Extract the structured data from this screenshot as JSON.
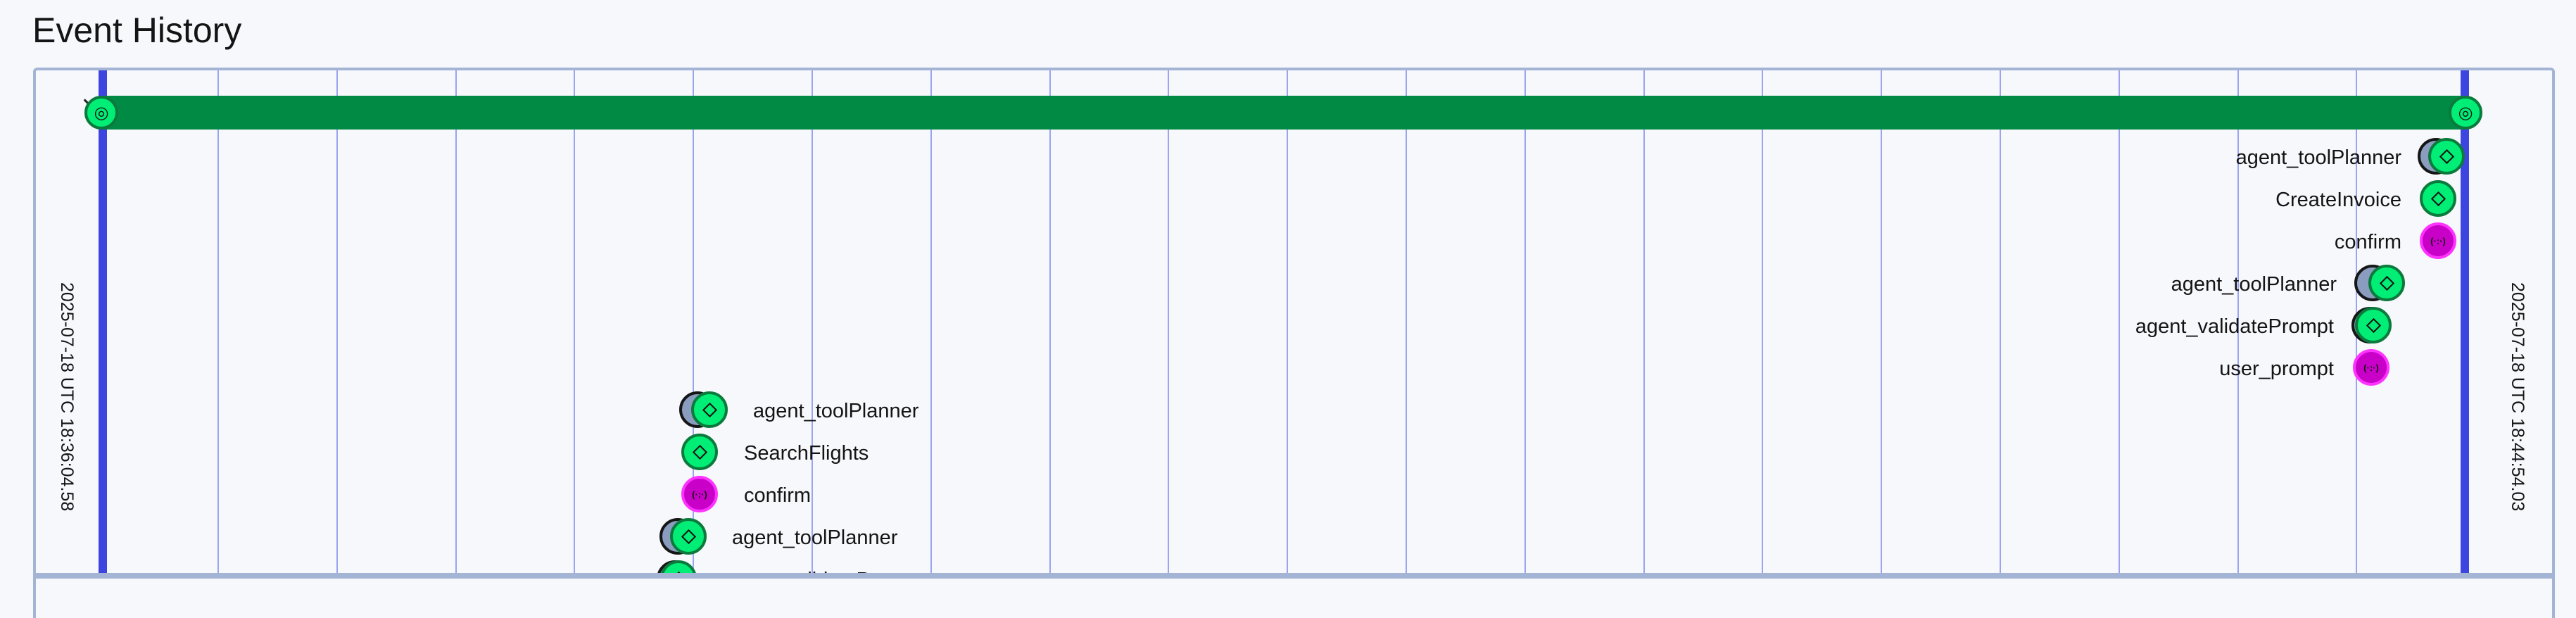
{
  "header": {
    "title": "Event History"
  },
  "timeline": {
    "start_timestamp": "2025-07-18 UTC 18:36:04.58",
    "end_timestamp": "2025-07-18 UTC 18:44:54.03",
    "workflow_icon": "workflow-spiral-icon",
    "colors": {
      "bar": "#008a43",
      "node": "#00ee75",
      "signal": "#c800c8",
      "boundary": "#3d45e0",
      "grid": "#9ba4f0"
    }
  },
  "events_late": [
    {
      "label": "agent_toolPlanner",
      "type": "activity",
      "icon": "diamond-icon"
    },
    {
      "label": "CreateInvoice",
      "type": "activity",
      "icon": "diamond-icon"
    },
    {
      "label": "confirm",
      "type": "signal",
      "icon": "signal-icon"
    },
    {
      "label": "agent_toolPlanner",
      "type": "activity",
      "icon": "diamond-icon"
    },
    {
      "label": "agent_validatePrompt",
      "type": "activity",
      "icon": "diamond-icon"
    },
    {
      "label": "user_prompt",
      "type": "signal",
      "icon": "signal-icon"
    }
  ],
  "events_early": [
    {
      "label": "agent_toolPlanner",
      "type": "activity",
      "icon": "diamond-icon"
    },
    {
      "label": "SearchFlights",
      "type": "activity",
      "icon": "diamond-icon"
    },
    {
      "label": "confirm",
      "type": "signal",
      "icon": "signal-icon"
    },
    {
      "label": "agent_toolPlanner",
      "type": "activity",
      "icon": "diamond-icon"
    },
    {
      "label": "agent_validatePrompt",
      "type": "activity",
      "icon": "diamond-icon"
    }
  ]
}
